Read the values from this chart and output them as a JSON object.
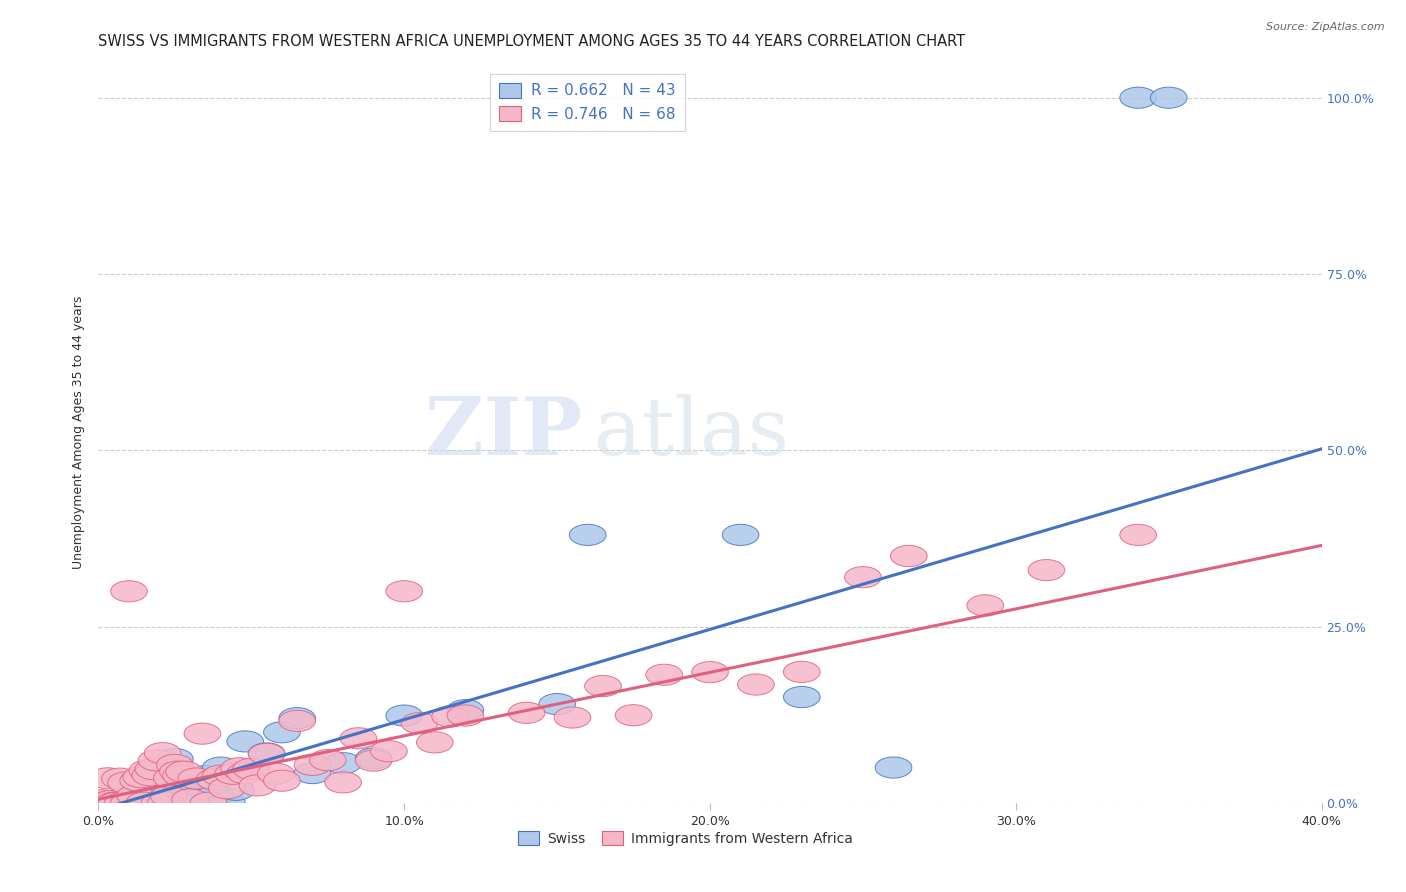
{
  "title": "SWISS VS IMMIGRANTS FROM WESTERN AFRICA UNEMPLOYMENT AMONG AGES 35 TO 44 YEARS CORRELATION CHART",
  "source": "Source: ZipAtlas.com",
  "ylabel": "Unemployment Among Ages 35 to 44 years",
  "xlim": [
    0.0,
    0.4
  ],
  "ylim": [
    0.0,
    1.05
  ],
  "x_ticks": [
    0.0,
    0.1,
    0.2,
    0.3,
    0.4
  ],
  "y_ticks": [
    0.0,
    0.25,
    0.5,
    0.75,
    1.0
  ],
  "watermark_zip": "ZIP",
  "watermark_atlas": "atlas",
  "swiss_color": "#adc8ea",
  "swiss_line_color": "#4472c4",
  "imm_color": "#f5b8c9",
  "imm_line_color": "#e06080",
  "swiss_R": 0.662,
  "swiss_N": 43,
  "imm_R": 0.746,
  "imm_N": 68,
  "legend_label_swiss": "Swiss",
  "legend_label_imm": "Immigrants from Western Africa",
  "swiss_slope": 1.28,
  "swiss_intercept": -0.01,
  "imm_slope": 0.9,
  "imm_intercept": 0.005,
  "grid_color": "#cccccc",
  "bg_color": "#ffffff",
  "right_tick_color": "#4472c4",
  "title_fontsize": 10.5,
  "source_fontsize": 8
}
